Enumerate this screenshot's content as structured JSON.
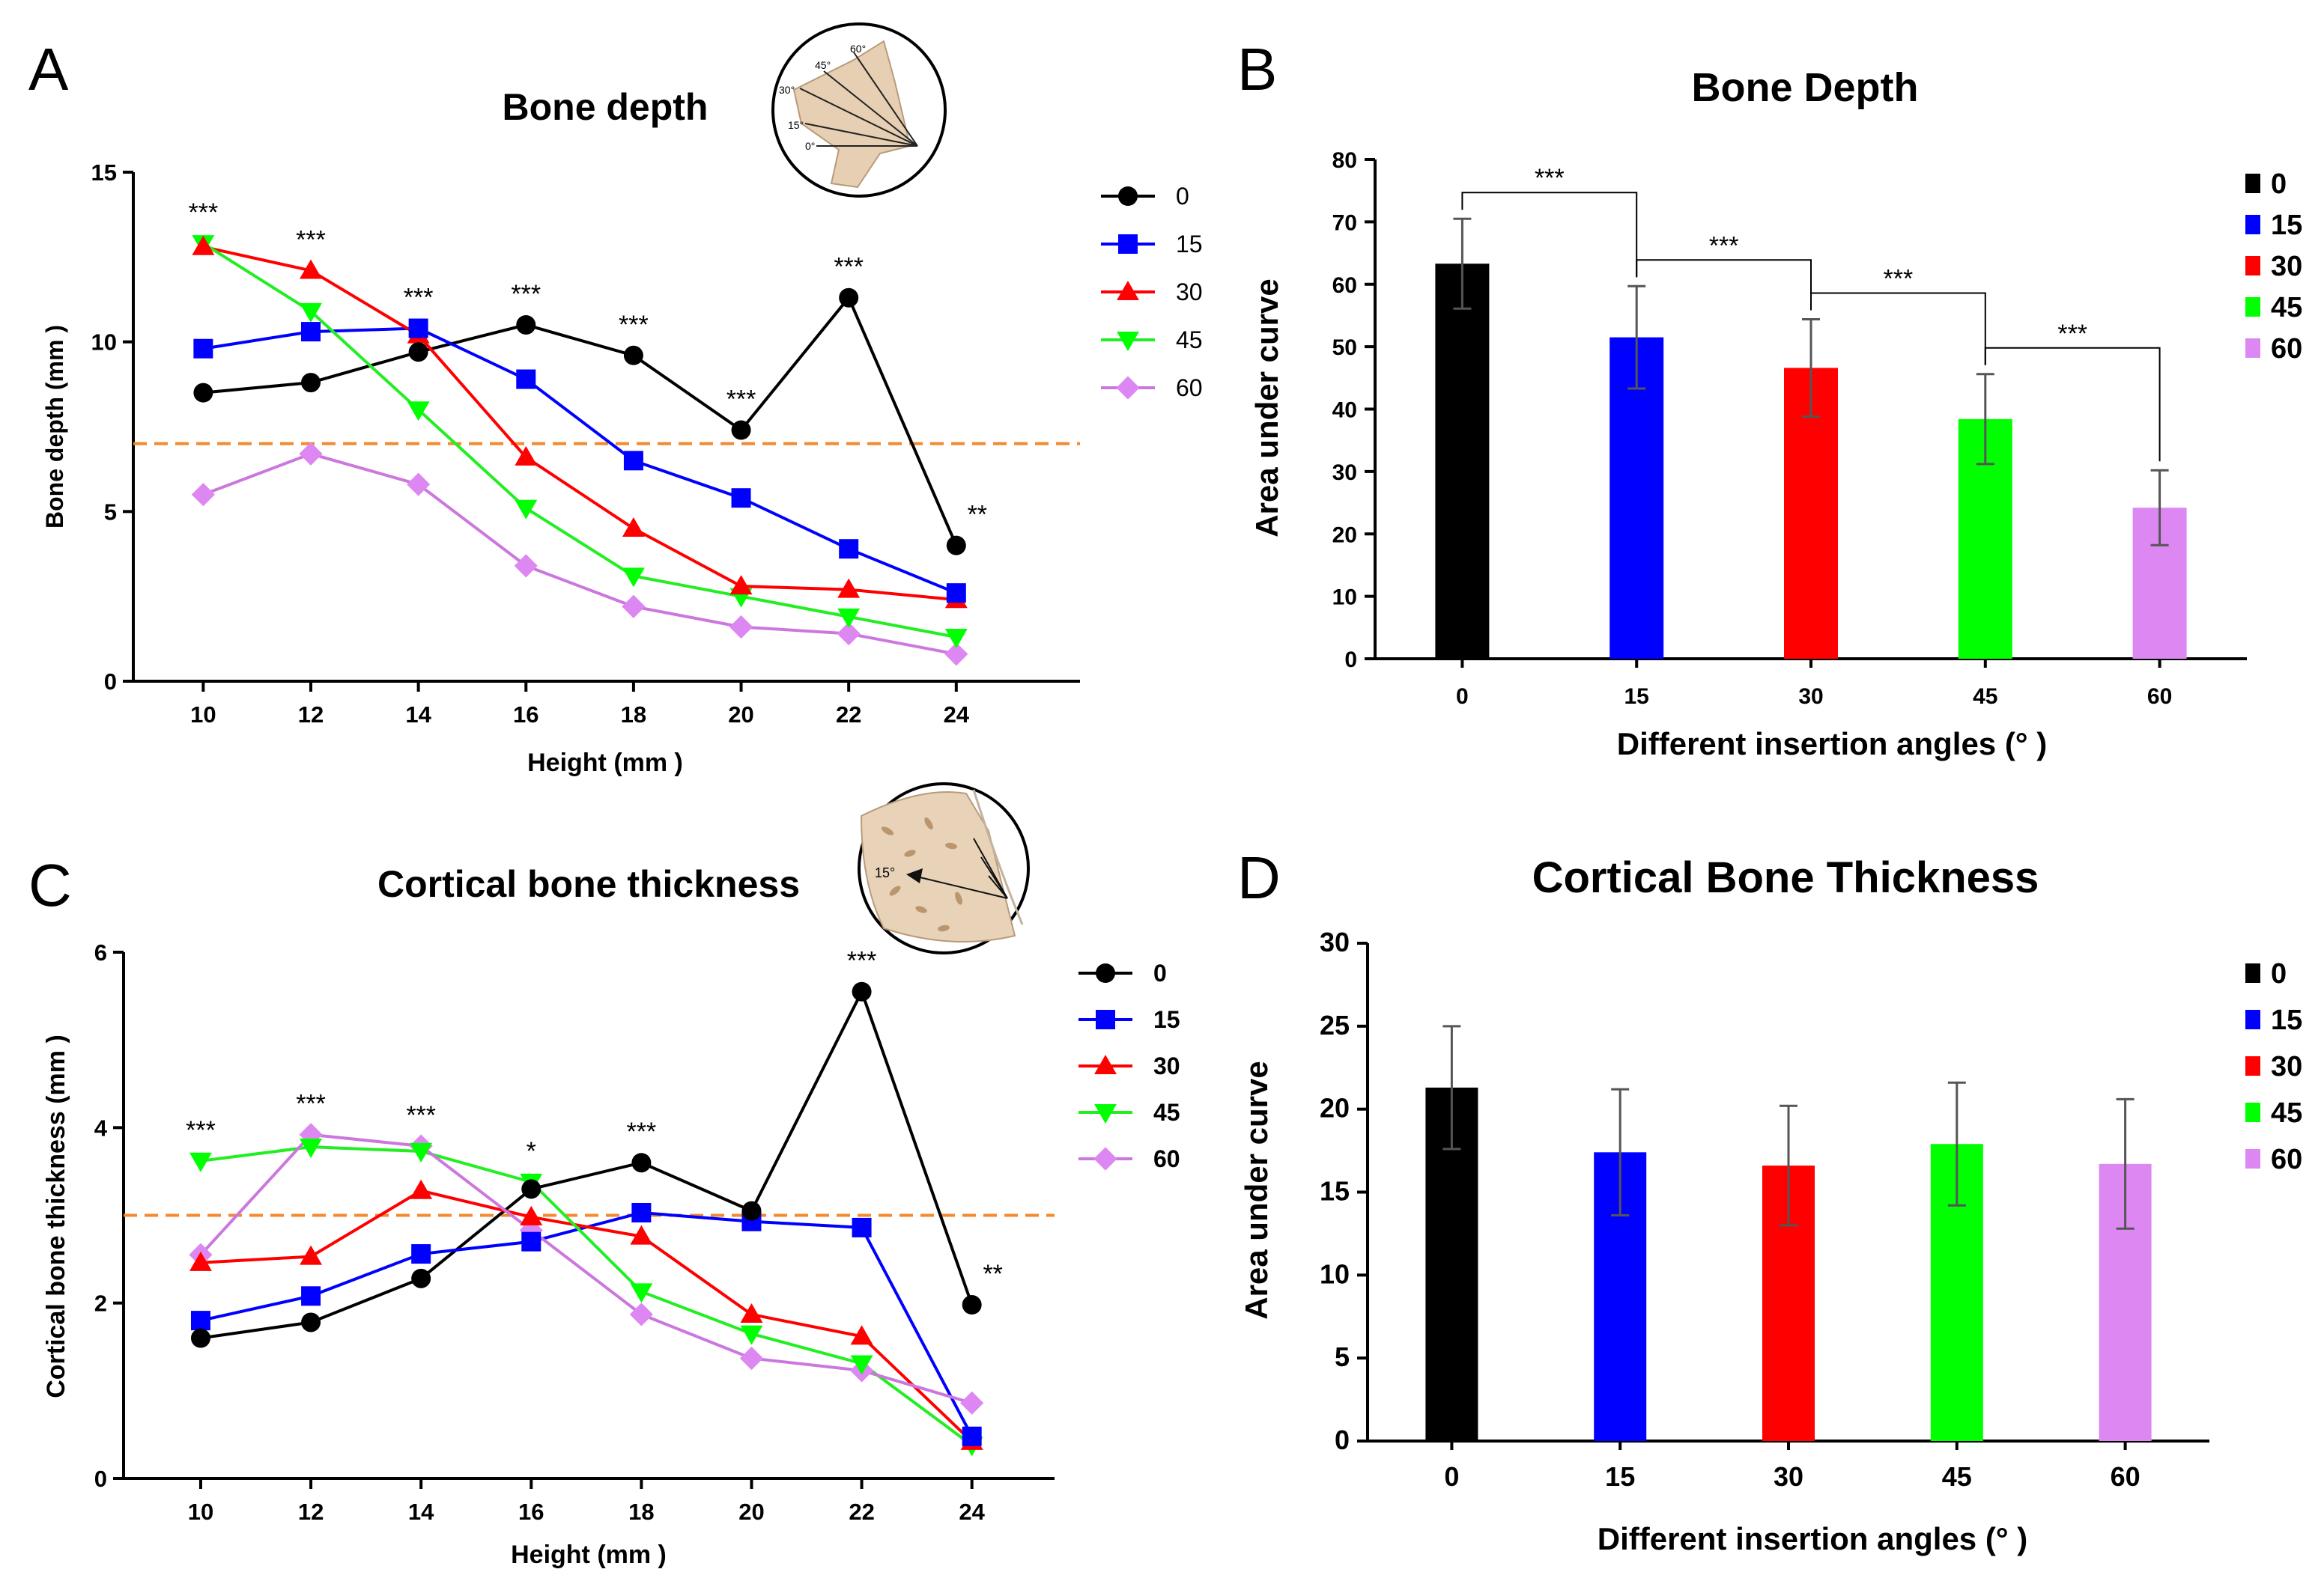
{
  "figure": {
    "panel_labels": [
      "A",
      "B",
      "C",
      "D"
    ]
  },
  "colors": {
    "angle_0": "#000000",
    "angle_15": "#0000ff",
    "angle_30": "#ff0000",
    "angle_45": "#00ff00",
    "angle_60": "#dd88f2",
    "line_45": "#22ee22",
    "line_60": "#cc77dd",
    "threshold_line": "#f4892e",
    "error_bar": "#555555"
  },
  "chart_data": [
    {
      "panel": "A",
      "type": "line",
      "title": "Bone depth",
      "xlabel": "Height (mm )",
      "ylabel": "Bone depth (mm )",
      "x": [
        10,
        12,
        14,
        16,
        18,
        20,
        22,
        24
      ],
      "xlim": [
        8.7,
        26.3
      ],
      "ylim": [
        0,
        15
      ],
      "yticks": [
        0,
        5,
        10,
        15
      ],
      "threshold": 7,
      "series": [
        {
          "name": "0",
          "marker": "circle",
          "values": [
            8.5,
            8.8,
            9.7,
            10.5,
            9.6,
            7.4,
            11.3,
            4.0
          ]
        },
        {
          "name": "15",
          "marker": "square",
          "values": [
            9.8,
            10.3,
            10.4,
            8.9,
            6.5,
            5.4,
            3.9,
            2.6
          ]
        },
        {
          "name": "30",
          "marker": "triangle",
          "values": [
            12.8,
            12.1,
            10.2,
            6.6,
            4.5,
            2.8,
            2.7,
            2.4
          ]
        },
        {
          "name": "45",
          "marker": "triangle-down",
          "values": [
            12.9,
            10.9,
            8.0,
            5.1,
            3.1,
            2.5,
            1.9,
            1.3
          ]
        },
        {
          "name": "60",
          "marker": "diamond",
          "values": [
            5.5,
            6.7,
            5.8,
            3.4,
            2.2,
            1.6,
            1.4,
            0.8
          ]
        }
      ],
      "significance": [
        {
          "x": 10,
          "label": "***"
        },
        {
          "x": 12,
          "label": "***"
        },
        {
          "x": 14,
          "label": "***"
        },
        {
          "x": 16,
          "label": "***"
        },
        {
          "x": 18,
          "label": "***"
        },
        {
          "x": 20,
          "label": "***"
        },
        {
          "x": 22,
          "label": "***"
        },
        {
          "x": 24,
          "label": "**"
        }
      ],
      "inset_labels": [
        "60°",
        "45°",
        "30°",
        "15°",
        "0°"
      ]
    },
    {
      "panel": "B",
      "type": "bar",
      "title": "Bone Depth",
      "xlabel": "Different insertion angles (° )",
      "ylabel": "Area under curve",
      "categories": [
        "0",
        "15",
        "30",
        "45",
        "60"
      ],
      "values": [
        63.3,
        51.5,
        46.6,
        38.4,
        24.2
      ],
      "errors": [
        7.2,
        8.2,
        7.8,
        7.2,
        6.0
      ],
      "ylim": [
        0,
        80
      ],
      "yticks": [
        0,
        10,
        20,
        30,
        40,
        50,
        60,
        70,
        80
      ],
      "comparisons": [
        {
          "from": 0,
          "to": 1,
          "label": "***"
        },
        {
          "from": 1,
          "to": 2,
          "label": "***"
        },
        {
          "from": 2,
          "to": 3,
          "label": "***"
        },
        {
          "from": 3,
          "to": 4,
          "label": "***"
        }
      ],
      "legend": [
        "0",
        "15",
        "30",
        "45",
        "60"
      ]
    },
    {
      "panel": "C",
      "type": "line",
      "title": "Cortical bone thickness",
      "xlabel": "Height (mm )",
      "ylabel": "Cortical bone thickness (mm )",
      "x": [
        10,
        12,
        14,
        16,
        18,
        20,
        22,
        24
      ],
      "xlim": [
        8.6,
        25.5
      ],
      "ylim": [
        0,
        6
      ],
      "yticks": [
        0,
        2,
        4,
        6
      ],
      "threshold": 3,
      "series": [
        {
          "name": "0",
          "marker": "circle",
          "values": [
            1.6,
            1.78,
            2.28,
            3.3,
            3.6,
            3.05,
            5.55,
            1.98
          ]
        },
        {
          "name": "15",
          "marker": "square",
          "values": [
            1.8,
            2.08,
            2.56,
            2.7,
            3.03,
            2.93,
            2.86,
            0.48
          ]
        },
        {
          "name": "30",
          "marker": "triangle",
          "values": [
            2.46,
            2.53,
            3.28,
            2.98,
            2.76,
            1.87,
            1.62,
            0.42
          ]
        },
        {
          "name": "45",
          "marker": "triangle-down",
          "values": [
            3.62,
            3.78,
            3.73,
            3.38,
            2.13,
            1.65,
            1.31,
            0.38
          ]
        },
        {
          "name": "60",
          "marker": "diamond",
          "values": [
            2.55,
            3.92,
            3.79,
            2.83,
            1.87,
            1.37,
            1.23,
            0.86
          ]
        }
      ],
      "significance": [
        {
          "x": 10,
          "label": "***"
        },
        {
          "x": 12,
          "label": "***"
        },
        {
          "x": 14,
          "label": "***"
        },
        {
          "x": 16,
          "label": "*"
        },
        {
          "x": 18,
          "label": "***"
        },
        {
          "x": 22,
          "label": "***"
        },
        {
          "x": 24,
          "label": "**"
        }
      ],
      "inset_labels": [
        "15°"
      ]
    },
    {
      "panel": "D",
      "type": "bar",
      "title": "Cortical  Bone Thickness",
      "xlabel": "Different insertion angles (° )",
      "ylabel": "Area under curve",
      "categories": [
        "0",
        "15",
        "30",
        "45",
        "60"
      ],
      "values": [
        21.3,
        17.4,
        16.6,
        17.9,
        16.7
      ],
      "errors": [
        3.7,
        3.8,
        3.6,
        3.7,
        3.9
      ],
      "ylim": [
        0,
        30
      ],
      "yticks": [
        0,
        5,
        10,
        15,
        20,
        25,
        30
      ],
      "comparisons": [],
      "legend": [
        "0",
        "15",
        "30",
        "45",
        "60"
      ]
    }
  ]
}
